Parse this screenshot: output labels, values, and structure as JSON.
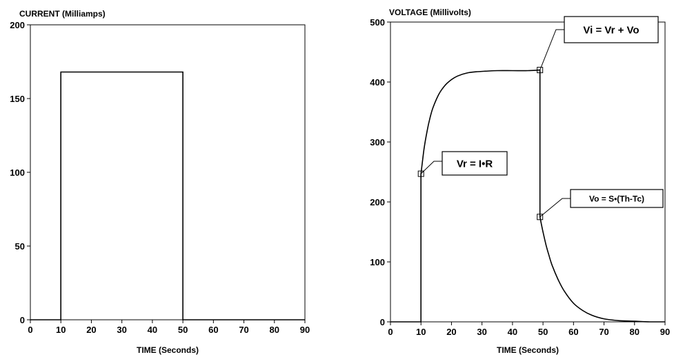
{
  "chart_data": [
    {
      "type": "line",
      "title": "CURRENT (Milliamps)",
      "xlabel": "TIME (Seconds)",
      "ylabel": "",
      "xlim": [
        0,
        90
      ],
      "ylim": [
        0,
        200
      ],
      "x_ticks": [
        0,
        10,
        20,
        30,
        40,
        50,
        60,
        70,
        80,
        90
      ],
      "y_ticks": [
        0,
        50,
        100,
        150,
        200
      ],
      "grid": false,
      "series": [
        {
          "x": [
            0,
            10,
            10,
            50,
            50,
            90
          ],
          "y": [
            0,
            0,
            168,
            168,
            0,
            0
          ]
        }
      ]
    },
    {
      "type": "line",
      "title": "VOLTAGE (Millivolts)",
      "xlabel": "TIME (Seconds)",
      "ylabel": "",
      "xlim": [
        0,
        90
      ],
      "ylim": [
        0,
        500
      ],
      "x_ticks": [
        0,
        10,
        20,
        30,
        40,
        50,
        60,
        70,
        80,
        90
      ],
      "y_ticks": [
        0,
        100,
        200,
        300,
        400,
        500
      ],
      "grid": false,
      "series": [
        {
          "x": [
            0,
            10,
            10,
            11,
            12,
            13,
            14,
            16,
            18,
            20,
            22,
            25,
            28,
            31,
            35,
            40,
            45,
            49,
            49,
            50,
            51,
            52,
            53,
            55,
            57,
            60,
            63,
            66,
            70,
            75,
            80,
            85,
            90
          ],
          "y": [
            0,
            0,
            247,
            288,
            318,
            341,
            358,
            381,
            395,
            404,
            410,
            415,
            417,
            418,
            419,
            419,
            419,
            420,
            175,
            150,
            128,
            110,
            94,
            70,
            51,
            31,
            19,
            11,
            5,
            2,
            1,
            0,
            0
          ]
        }
      ],
      "annotations": [
        {
          "text": "Vi = Vr + Vo",
          "x": 49,
          "y": 420
        },
        {
          "text": "Vr = I•R",
          "x": 10,
          "y": 247
        },
        {
          "text": "Vo = S•(Th-Tc)",
          "x": 49,
          "y": 175
        }
      ]
    }
  ]
}
